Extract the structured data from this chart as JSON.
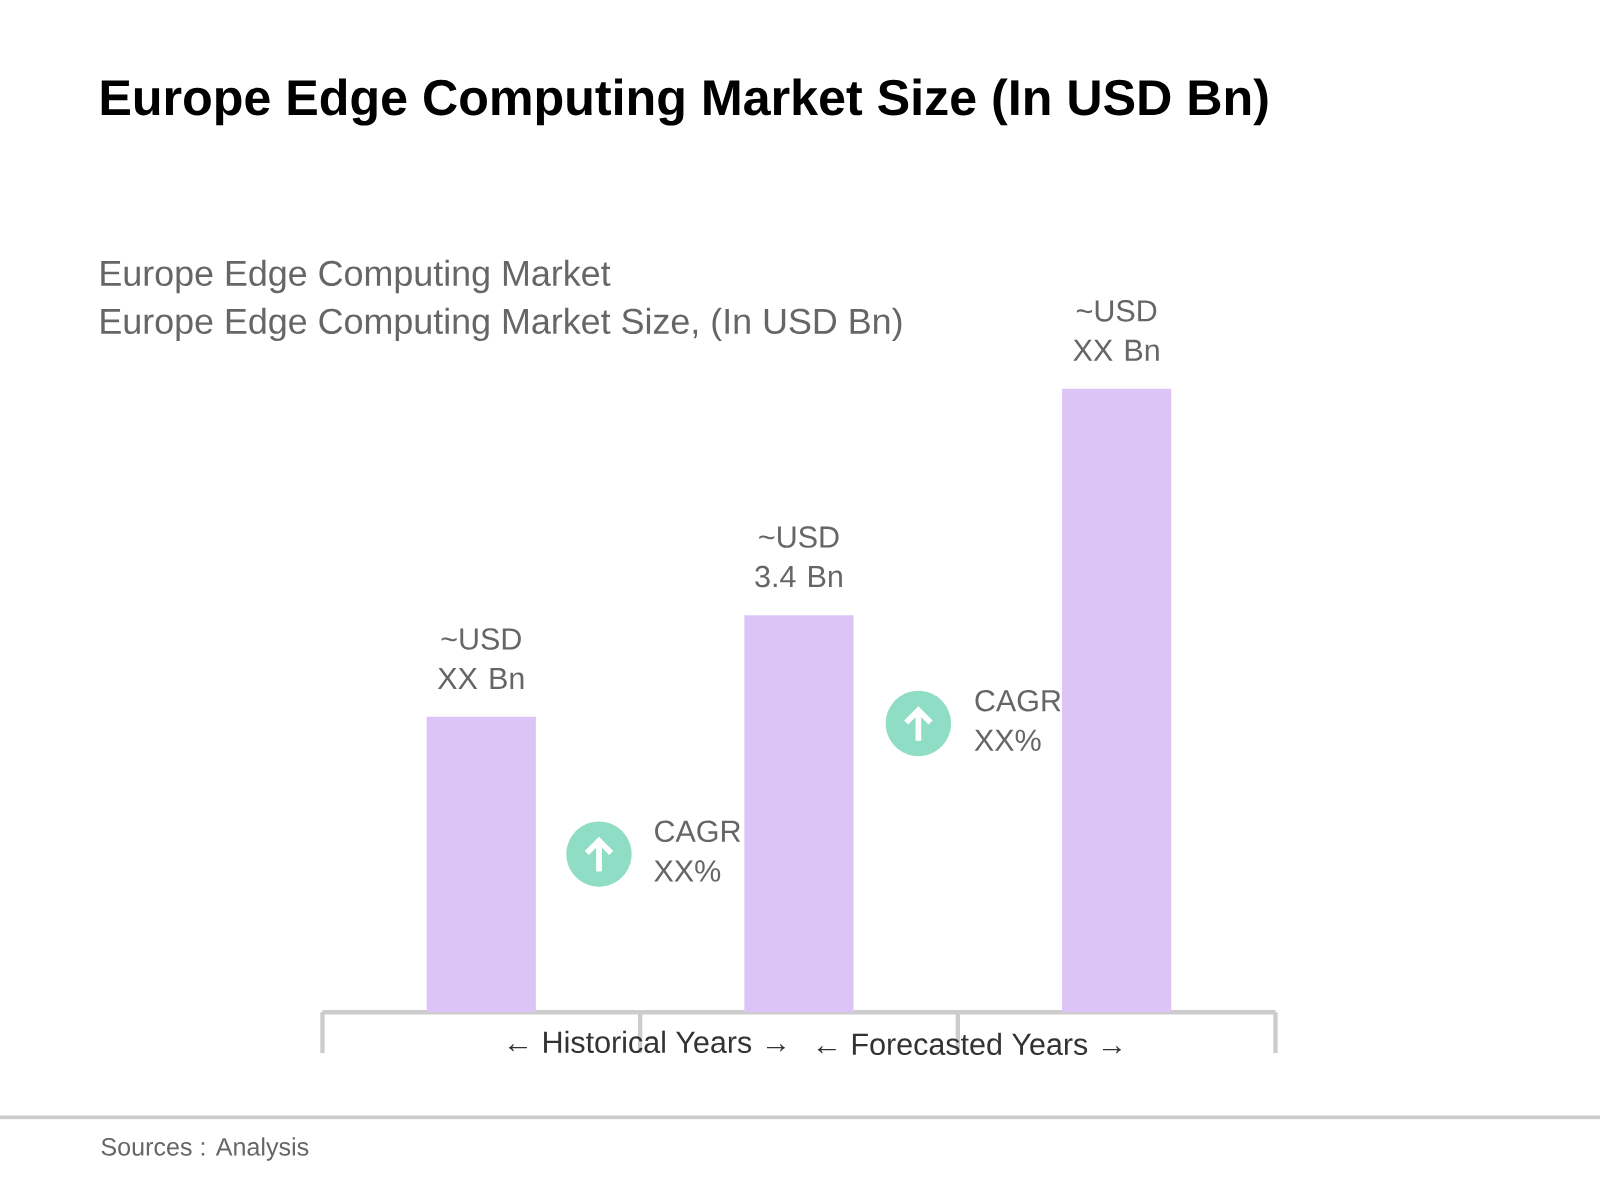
{
  "chart_data": {
    "type": "bar",
    "title": "Europe Edge Computing Market Size (In USD Bn)",
    "subtitle": "Europe Edge Computing Market",
    "categories": [
      null,
      null,
      null
    ],
    "values": [
      2.53,
      3.4,
      5.34
    ],
    "color": "#dcc4f6",
    "value_labels": [
      "~USD XX Bn",
      "~USD 3.4 Bn",
      "~USD XX Bn"
    ],
    "annotations": [
      "Europe Edge Computing Market Size, (In USD Bn)",
      "CAGR XX%",
      "CAGR XX%",
      "← Historical Years →",
      "← Forecasted Years →",
      "Sources : Analysis"
    ]
  }
}
